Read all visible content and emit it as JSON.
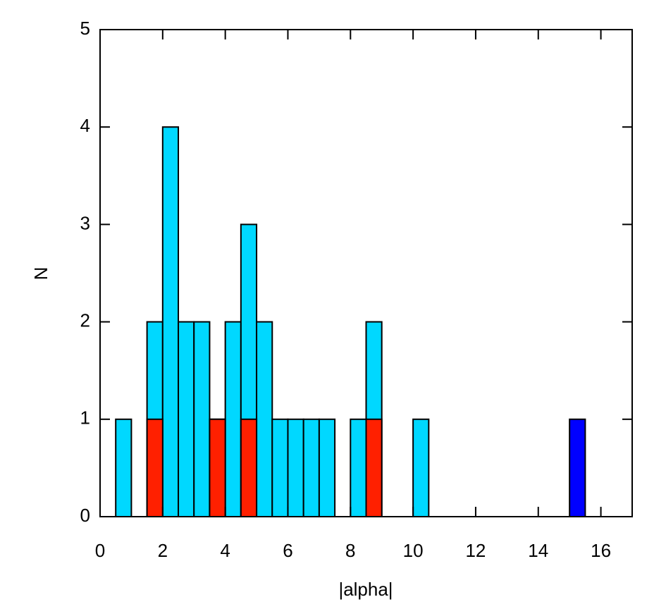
{
  "chart_data": {
    "type": "histogram",
    "xlabel": "|alpha|",
    "ylabel": "N",
    "bins": [
      0,
      0.5,
      1,
      1.5,
      2,
      2.5,
      3,
      3.5,
      4,
      4.5,
      5,
      5.5,
      6,
      6.5,
      7,
      7.5,
      8,
      8.5,
      9,
      9.5,
      10,
      10.5,
      11,
      11.5,
      12,
      12.5,
      13,
      13.5,
      14,
      14.5,
      15,
      15.5,
      16,
      16.5,
      17
    ],
    "series": [
      {
        "color": "#00d8ff",
        "values": [
          0,
          1,
          0,
          2,
          4,
          2,
          2,
          1,
          2,
          3,
          2,
          1,
          1,
          1,
          1,
          0,
          1,
          2,
          0,
          0,
          1,
          0,
          0,
          0,
          0,
          0,
          0,
          0,
          0,
          0,
          0,
          0,
          0,
          0
        ]
      },
      {
        "color": "#ff2000",
        "values": [
          0,
          0,
          0,
          1,
          0,
          0,
          0,
          1,
          0,
          1,
          0,
          0,
          0,
          0,
          0,
          0,
          0,
          1,
          0,
          0,
          0,
          0,
          0,
          0,
          0,
          0,
          0,
          0,
          0,
          0,
          0,
          0,
          0,
          0
        ]
      },
      {
        "color": "#0000ff",
        "values": [
          0,
          0,
          0,
          0,
          0,
          0,
          0,
          0,
          0,
          0,
          0,
          0,
          0,
          0,
          0,
          0,
          0,
          0,
          0,
          0,
          0,
          0,
          0,
          0,
          0,
          0,
          0,
          0,
          0,
          0,
          1,
          0,
          0,
          0
        ]
      }
    ],
    "xlim": [
      0,
      17
    ],
    "xticks": [
      0,
      2,
      4,
      6,
      8,
      10,
      12,
      14,
      16
    ],
    "ylim": [
      0,
      5
    ],
    "yticks": [
      0,
      1,
      2,
      3,
      4,
      5
    ]
  }
}
